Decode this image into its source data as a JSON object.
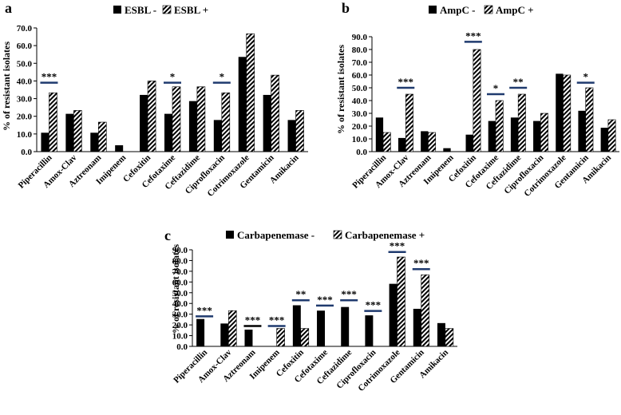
{
  "chart_data": [
    {
      "type": "bar",
      "panel_label": "a",
      "categories": [
        "Piperacillin",
        "Amox-Clav",
        "Aztreonam",
        "Imipenem",
        "Cefoxitin",
        "Cefotaxime",
        "Ceftazidime",
        "Ciprofloxacin",
        "Cotrimoxazole",
        "Gentamicin",
        "Amikacin"
      ],
      "series": [
        {
          "name": "ESBL -",
          "pattern": "solid",
          "values": [
            10.7,
            21.4,
            10.7,
            3.6,
            32.1,
            21.4,
            28.6,
            17.9,
            53.6,
            32.1,
            17.9
          ]
        },
        {
          "name": "ESBL +",
          "pattern": "hatched",
          "values": [
            33.3,
            23.3,
            16.7,
            0,
            40.0,
            36.7,
            36.7,
            33.3,
            66.7,
            43.3,
            23.3
          ]
        }
      ],
      "significance": [
        {
          "category": "Piperacillin",
          "label": "***",
          "line_value": 39
        },
        {
          "category": "Cefotaxime",
          "label": "*",
          "line_value": 39
        },
        {
          "category": "Ciprofloxacin",
          "label": "*",
          "line_value": 39
        }
      ],
      "ylabel": "% of resistant isolates",
      "yticks": [
        "0.0",
        "10.0",
        "20.0",
        "30.0",
        "40.0",
        "50.0",
        "60.0",
        "70.0"
      ],
      "ylim": [
        0,
        70
      ],
      "grid": false,
      "legend_position": "top"
    },
    {
      "type": "bar",
      "panel_label": "b",
      "categories": [
        "Piperacillin",
        "Amox-Clav",
        "Aztreonam",
        "Imipenem",
        "Cefoxitin",
        "Cefotaxime",
        "Ceftazidime",
        "Ciprofloxacin",
        "Cotrimoxazole",
        "Gentamicin",
        "Amikacin"
      ],
      "series": [
        {
          "name": "AmpC -",
          "pattern": "solid",
          "values": [
            26.7,
            10.7,
            16.0,
            2.7,
            13.3,
            24.0,
            26.7,
            24.0,
            61.0,
            32.0,
            18.7
          ]
        },
        {
          "name": "AmpC +",
          "pattern": "hatched",
          "values": [
            15.0,
            45.0,
            15.0,
            0,
            80.0,
            40.0,
            45.0,
            30.0,
            60.0,
            50.0,
            25.0
          ]
        }
      ],
      "significance": [
        {
          "category": "Amox-Clav",
          "label": "***",
          "line_value": 50
        },
        {
          "category": "Cefoxitin",
          "label": "***",
          "line_value": 86
        },
        {
          "category": "Cefotaxime",
          "label": "*",
          "line_value": 45
        },
        {
          "category": "Ceftazidime",
          "label": "**",
          "line_value": 50
        },
        {
          "category": "Gentamicin",
          "label": "*",
          "line_value": 54
        }
      ],
      "ylabel": "% of resistant isolates",
      "yticks": [
        "0.0",
        "10.0",
        "20.0",
        "30.0",
        "40.0",
        "50.0",
        "60.0",
        "70.0",
        "80.0",
        "90.0"
      ],
      "ylim": [
        0,
        90
      ],
      "grid": false,
      "legend_position": "top"
    },
    {
      "type": "bar",
      "panel_label": "c",
      "categories": [
        "Piperacillin",
        "Amox-Clav",
        "Aztreonam",
        "Imipenem",
        "Cefoxitin",
        "Cefotaxime",
        "Ceftazidime",
        "Ciprofloxacin",
        "Cotrimoxazole",
        "Gentamicin",
        "Amikacin"
      ],
      "series": [
        {
          "name": "Carbapenemase -",
          "pattern": "solid",
          "values": [
            25.5,
            21.3,
            15.6,
            0,
            38.3,
            33.3,
            36.7,
            28.9,
            58.3,
            35.0,
            21.7
          ]
        },
        {
          "name": "Carbapenemase +",
          "pattern": "hatched",
          "values": [
            0,
            33.3,
            0,
            16.7,
            16.7,
            0,
            0,
            0,
            83.3,
            66.7,
            16.7
          ]
        }
      ],
      "significance": [
        {
          "category": "Piperacillin",
          "label": "***",
          "line_value": 28
        },
        {
          "category": "Aztreonam",
          "label": "***",
          "line_value": 19
        },
        {
          "category": "Imipenem",
          "label": "***",
          "line_value": 19
        },
        {
          "category": "Cefoxitin",
          "label": "**",
          "line_value": 43
        },
        {
          "category": "Cefotaxime",
          "label": "***",
          "line_value": 38
        },
        {
          "category": "Ceftazidime",
          "label": "***",
          "line_value": 43
        },
        {
          "category": "Ciprofloxacin",
          "label": "***",
          "line_value": 33
        },
        {
          "category": "Cotrimoxazole",
          "label": "***",
          "line_value": 88
        },
        {
          "category": "Gentamicin",
          "label": "***",
          "line_value": 72
        }
      ],
      "ylabel": "% of resistant isolates",
      "yticks": [
        "0.0",
        "10.0",
        "20.0",
        "30.0",
        "40.0",
        "50.0",
        "60.0",
        "70.0",
        "80.0",
        "90.0"
      ],
      "ylim": [
        0,
        90
      ],
      "grid": false,
      "legend_position": "top"
    }
  ]
}
